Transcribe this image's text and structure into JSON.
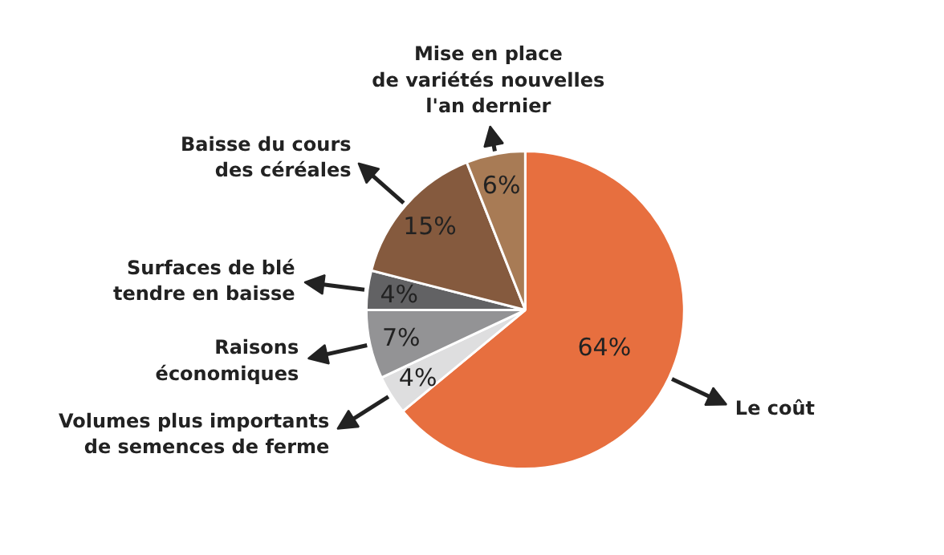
{
  "chart_data": {
    "type": "pie",
    "categories": [
      "Le coût",
      "Volumes plus importants\nde semences de ferme",
      "Raisons\néconomiques",
      "Surfaces de blé\ntendre en baisse",
      "Baisse du cours\ndes céréales",
      "Mise en place\nde variétés nouvelles\nl'an dernier"
    ],
    "values": [
      64,
      4,
      7,
      4,
      15,
      6
    ],
    "colors": [
      "#e76f3f",
      "#dededf",
      "#939395",
      "#626264",
      "#855a3e",
      "#a87b55"
    ],
    "value_labels": [
      "64%",
      "4%",
      "7%",
      "4%",
      "15%",
      "6%"
    ]
  }
}
